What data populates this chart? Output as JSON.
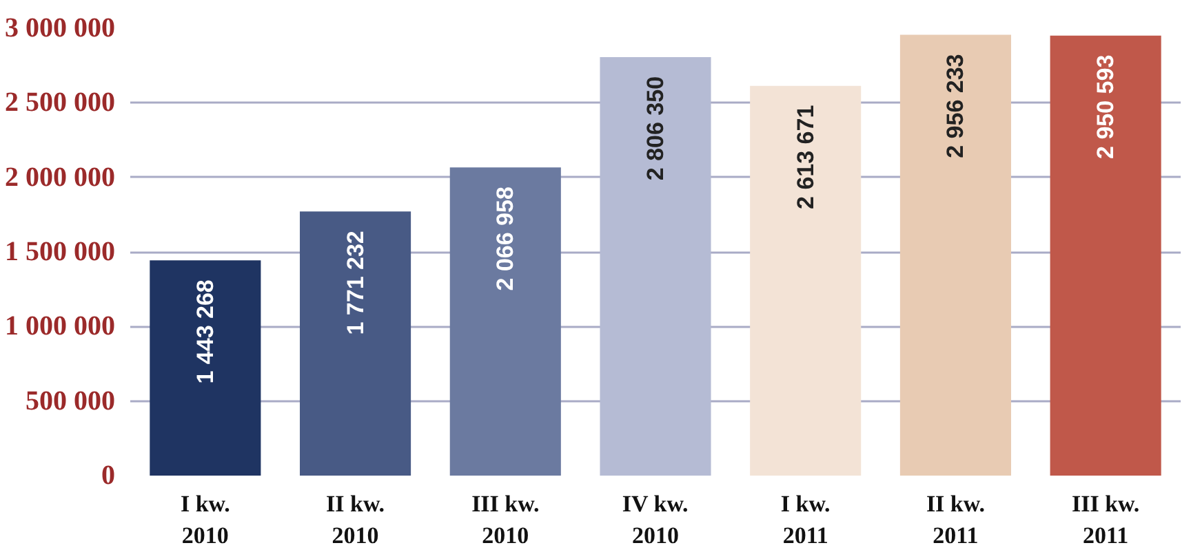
{
  "chart_data": {
    "type": "bar",
    "categories": [
      "I kw.\n2010",
      "II kw.\n2010",
      "III kw.\n2010",
      "IV kw.\n2010",
      "I kw.\n2011",
      "II kw.\n2011",
      "III kw.\n2011"
    ],
    "values": [
      1443268,
      1771232,
      2066958,
      2806350,
      2613671,
      2956233,
      2950593
    ],
    "value_labels": [
      "1 443 268",
      "1 771 232",
      "2 066 958",
      "2 806 350",
      "2 613 671",
      "2 956 233",
      "2 950 593"
    ],
    "colors": [
      "#1f3462",
      "#485a85",
      "#6b7aa0",
      "#b5bbd4",
      "#f3e3d6",
      "#e8cbb3",
      "#c0584a"
    ],
    "ylim": [
      0,
      3000000
    ],
    "yticks": [
      {
        "value": 0,
        "label": "0"
      },
      {
        "value": 500000,
        "label": "500 000"
      },
      {
        "value": 1000000,
        "label": "1 000 000"
      },
      {
        "value": 1500000,
        "label": "1 500 000"
      },
      {
        "value": 2000000,
        "label": "2 000 000"
      },
      {
        "value": 2500000,
        "label": "2 500 000"
      },
      {
        "value": 3000000,
        "label": "3 000 000"
      }
    ],
    "grid": "y"
  }
}
